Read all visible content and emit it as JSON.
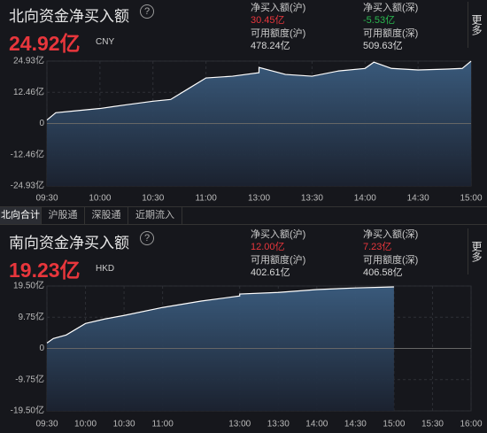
{
  "north": {
    "title": "北向资金净买入额",
    "help": "?",
    "value": "24.92亿",
    "currency": "CNY",
    "more": "更多",
    "stats": [
      {
        "label": "净买入额(沪)",
        "value": "30.45亿",
        "color": "#e8363c"
      },
      {
        "label": "净买入额(深)",
        "value": "-5.53亿",
        "color": "#2ab84f"
      },
      {
        "label": "可用额度(沪)",
        "value": "478.24亿",
        "color": "#d8d8d8"
      },
      {
        "label": "可用额度(深)",
        "value": "509.63亿",
        "color": "#d8d8d8"
      }
    ]
  },
  "tabs": [
    "北向合计",
    "沪股通",
    "深股通",
    "近期流入"
  ],
  "south": {
    "title": "南向资金净买入额",
    "help": "?",
    "value": "19.23亿",
    "currency": "HKD",
    "more": "更多",
    "stats": [
      {
        "label": "净买入额(沪)",
        "value": "12.00亿",
        "color": "#e8363c"
      },
      {
        "label": "净买入额(深)",
        "value": "7.23亿",
        "color": "#e8363c"
      },
      {
        "label": "可用额度(沪)",
        "value": "402.61亿",
        "color": "#d8d8d8"
      },
      {
        "label": "可用额度(深)",
        "value": "406.58亿",
        "color": "#d8d8d8"
      }
    ]
  },
  "chart_data": [
    {
      "type": "area",
      "color": "#ffffff",
      "fill": "#3b5d80",
      "x": [
        "09:30",
        "09:35",
        "09:45",
        "10:00",
        "10:15",
        "10:30",
        "10:40",
        "10:50",
        "11:00",
        "11:15",
        "11:30",
        "13:00",
        "13:15",
        "13:30",
        "13:45",
        "14:00",
        "14:05",
        "14:15",
        "14:30",
        "14:45",
        "14:55",
        "15:00"
      ],
      "values": [
        1.4,
        4.3,
        5.0,
        6.0,
        7.5,
        8.9,
        9.6,
        13.9,
        18.2,
        18.9,
        20.3,
        22.4,
        19.6,
        18.9,
        21.0,
        22.0,
        24.5,
        22.0,
        21.4,
        21.7,
        22.0,
        24.92
      ],
      "ylim": [
        -24.93,
        24.93
      ],
      "yticks": [
        {
          "value": -24.93,
          "label": "-24.93亿"
        },
        {
          "value": -12.46,
          "label": "-12.46亿"
        },
        0,
        {
          "value": 12.46,
          "label": "12.46亿"
        },
        {
          "value": 24.93,
          "label": "24.93亿"
        }
      ],
      "xlim": [
        "09:30",
        "15:00"
      ],
      "xticks": [
        "09:30",
        "10:00",
        "10:30",
        "11:00",
        "13:00",
        "13:30",
        "14:00",
        "14:30",
        "15:00"
      ],
      "grid": true
    },
    {
      "type": "area",
      "color": "#ffffff",
      "fill": "#3b5d80",
      "x": [
        "09:30",
        "09:35",
        "09:45",
        "10:00",
        "10:15",
        "10:30",
        "11:00",
        "11:30",
        "12:00",
        "13:00",
        "13:30",
        "14:00",
        "14:30",
        "15:00"
      ],
      "values": [
        1.7,
        3.1,
        4.2,
        7.8,
        9.2,
        10.3,
        12.8,
        14.8,
        16.4,
        17.0,
        17.5,
        18.4,
        18.9,
        19.23
      ],
      "ylim": [
        -19.5,
        19.5
      ],
      "yticks": [
        {
          "value": -19.5,
          "label": "-19.50亿"
        },
        {
          "value": -9.75,
          "label": "-9.75亿"
        },
        0,
        {
          "value": 9.75,
          "label": "9.75亿"
        },
        {
          "value": 19.5,
          "label": "19.50亿"
        }
      ],
      "xlim": [
        "09:30",
        "16:00"
      ],
      "xticks": [
        "09:30",
        "10:00",
        "10:30",
        "11:00",
        "13:00",
        "13:30",
        "14:00",
        "14:30",
        "15:00",
        "15:30",
        "16:00"
      ],
      "grid": true
    }
  ]
}
